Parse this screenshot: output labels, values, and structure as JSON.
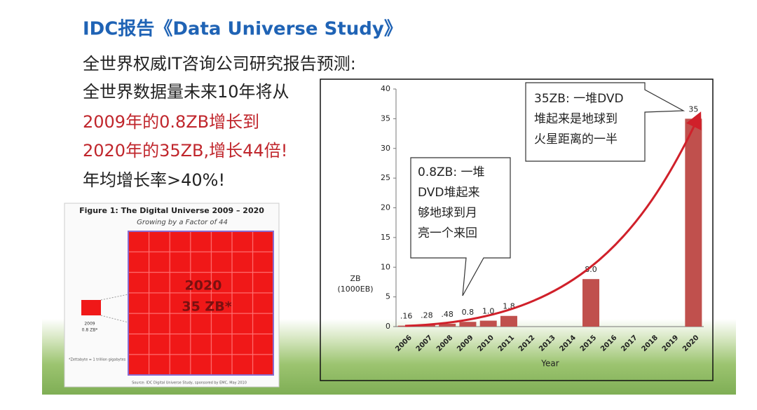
{
  "title": "IDC报告《Data Universe Study》",
  "body": [
    "全世界权威IT咨询公司研究报告预测:",
    "全世界数据量未来10年将从",
    "2009年的0.8ZB增长到",
    "2020年的35ZB,增长44倍!",
    "年均增长率>40%!"
  ],
  "figure": {
    "title": "Figure 1: The Digital Universe 2009 – 2020",
    "subtitle": "Growing by a Factor of 44",
    "big_label": [
      "2020",
      "35 ZB*"
    ],
    "small_label": [
      "2009",
      "0.8 ZB*"
    ],
    "note": "*Zettabyte = 1 trillion gigabytes",
    "source": "Source: IDC Digital Universe Study, sponsored by EMC, May 2010"
  },
  "chart_data": {
    "type": "bar",
    "categories": [
      "2006",
      "2007",
      "2008",
      "2009",
      "2010",
      "2011",
      "2012",
      "2013",
      "2014",
      "2015",
      "2016",
      "2017",
      "2018",
      "2019",
      "2020"
    ],
    "values": [
      0.16,
      0.28,
      0.48,
      0.8,
      1.0,
      1.8,
      null,
      null,
      null,
      8.0,
      null,
      null,
      null,
      null,
      35
    ],
    "value_labels": [
      ".16",
      ".28",
      ".48",
      "0.8",
      "1.0",
      "1.8",
      null,
      null,
      null,
      "8.0",
      null,
      null,
      null,
      null,
      "35"
    ],
    "color": "#c0504d",
    "ylim": [
      0,
      40
    ],
    "yticks": [
      0,
      5,
      10,
      15,
      20,
      25,
      30,
      35,
      40
    ],
    "y_label": [
      "ZB",
      "(1000EB)"
    ],
    "x_label": "Year",
    "annotations": [
      [
        "0.8ZB: 一堆",
        "DVD堆起来",
        "够地球到月",
        "亮一个来回"
      ],
      [
        "35ZB: 一堆DVD",
        "堆起来是地球到",
        "火星距离的一半"
      ]
    ]
  }
}
